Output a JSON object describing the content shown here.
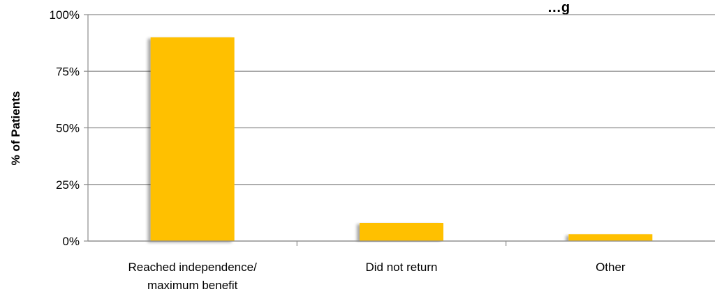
{
  "chart_data": {
    "type": "bar",
    "title": "…g",
    "ylabel": "% of Patients",
    "xlabel": "",
    "categories": [
      [
        "Reached independence/",
        "maximum benefit"
      ],
      [
        "Did not return"
      ],
      [
        "Other"
      ]
    ],
    "values": [
      90,
      8,
      3
    ],
    "ylim": [
      0,
      100
    ],
    "yticks": [
      0,
      25,
      50,
      75,
      100
    ],
    "ytick_labels": [
      "0%",
      "25%",
      "50%",
      "75%",
      "100%"
    ],
    "grid": true,
    "legend": "none",
    "bar_color": "#FFC000",
    "grid_color": "#8C8C8C"
  }
}
